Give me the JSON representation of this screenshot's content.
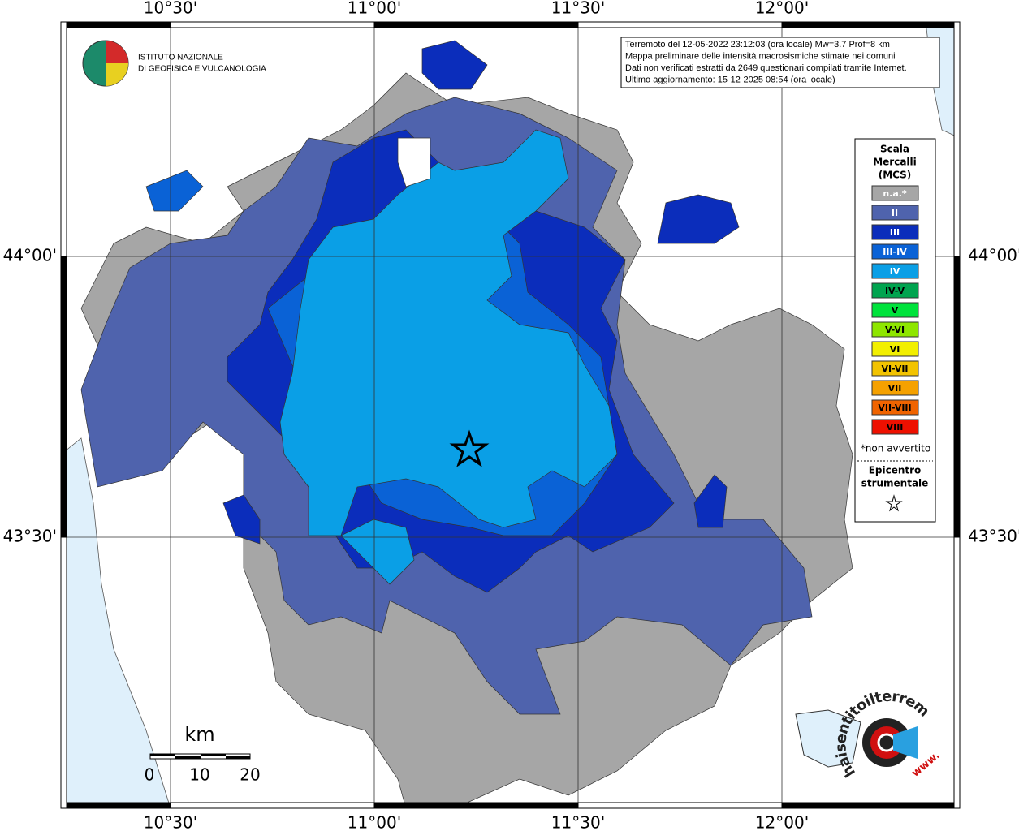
{
  "axes": {
    "longitudes": [
      "10°30'",
      "11°00'",
      "11°30'",
      "12°00'"
    ],
    "latitudes": [
      "44°00'",
      "43°30'"
    ]
  },
  "logo": {
    "lines": [
      "ISTITUTO NAZIONALE",
      "DI GEOFISICA E VULCANOLOGIA"
    ]
  },
  "info": {
    "lines": [
      "Terremoto del 12-05-2022 23:12:03 (ora locale) Mw=3.7 Prof=8 km",
      "Mappa preliminare delle intensità macrosismiche stimate nei comuni",
      "Dati non verificati estratti da 2649 questionari compilati tramite Internet.",
      "Ultimo aggiornamento: 15-12-2025 08:54 (ora locale)"
    ]
  },
  "legend": {
    "title": [
      "Scala",
      "Mercalli",
      "(MCS)"
    ],
    "items": [
      {
        "label": "n.a.*",
        "color": "#a6a6a6"
      },
      {
        "label": "II",
        "color": "#4f63ad"
      },
      {
        "label": "III",
        "color": "#0b2dbb"
      },
      {
        "label": "III-IV",
        "color": "#0a62d6"
      },
      {
        "label": "IV",
        "color": "#0a9fe6"
      },
      {
        "label": "IV-V",
        "color": "#00a44f"
      },
      {
        "label": "V",
        "color": "#00e33c"
      },
      {
        "label": "V-VI",
        "color": "#8ee600"
      },
      {
        "label": "VI",
        "color": "#f2ef00"
      },
      {
        "label": "VI-VII",
        "color": "#f2c300"
      },
      {
        "label": "VII",
        "color": "#f5a100"
      },
      {
        "label": "VII-VIII",
        "color": "#f06400"
      },
      {
        "label": "VIII",
        "color": "#ee1000"
      }
    ],
    "note": "*non avvertito",
    "epicenter": [
      "Epicentro",
      "strumentale"
    ]
  },
  "scale": {
    "unit": "km",
    "labels": [
      "0",
      "10",
      "20"
    ]
  },
  "badge": {
    "text": "haisentitoilterremoto.it",
    "prefix": "www."
  }
}
